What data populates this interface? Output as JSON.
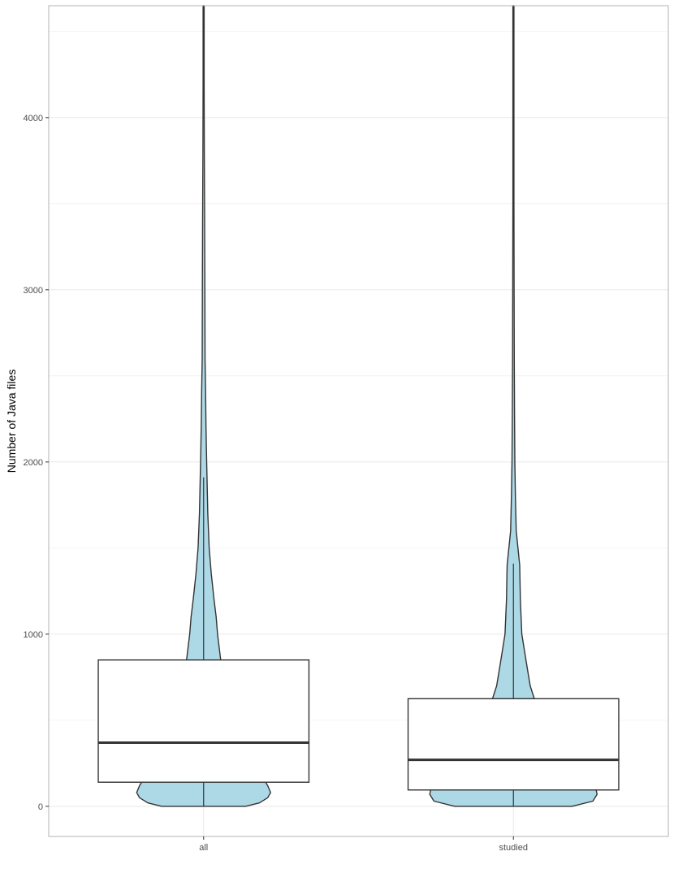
{
  "chart_data": {
    "type": "violin",
    "title": "",
    "xlabel": "",
    "ylabel": "Number of Java files",
    "categories": [
      "all",
      "studied"
    ],
    "ylim": [
      -175,
      4650
    ],
    "yticks": [
      0,
      1000,
      2000,
      3000,
      4000
    ],
    "ytick_labels": [
      "0",
      "1000",
      "2000",
      "3000",
      "4000"
    ],
    "grid": true,
    "legend": "none",
    "colors": {
      "violin_fill": "#add8e6",
      "outline": "#333333",
      "box_fill": "#ffffff",
      "grid": "#ebebeb",
      "panel_border": "#b3b3b3"
    },
    "series": [
      {
        "category": "all",
        "box": {
          "q1": 140,
          "median": 370,
          "q3": 850,
          "whisker_low": 0,
          "whisker_high": 1910
        },
        "violin_halfwidth": [
          [
            0,
            0.3
          ],
          [
            20,
            0.4
          ],
          [
            50,
            0.46
          ],
          [
            80,
            0.48
          ],
          [
            120,
            0.46
          ],
          [
            200,
            0.4
          ],
          [
            300,
            0.34
          ],
          [
            450,
            0.27
          ],
          [
            600,
            0.2
          ],
          [
            800,
            0.13
          ],
          [
            1000,
            0.1
          ],
          [
            1100,
            0.09
          ],
          [
            1200,
            0.075
          ],
          [
            1350,
            0.055
          ],
          [
            1500,
            0.04
          ],
          [
            1700,
            0.03
          ],
          [
            2000,
            0.022
          ],
          [
            2200,
            0.017
          ],
          [
            2400,
            0.014
          ],
          [
            2600,
            0.01
          ],
          [
            3000,
            0.009
          ],
          [
            3400,
            0.007
          ],
          [
            3800,
            0.005
          ],
          [
            4200,
            0.004
          ],
          [
            4650,
            0.004
          ]
        ]
      },
      {
        "category": "studied",
        "box": {
          "q1": 95,
          "median": 270,
          "q3": 625,
          "whisker_low": 0,
          "whisker_high": 1410
        },
        "violin_halfwidth": [
          [
            0,
            0.42
          ],
          [
            30,
            0.57
          ],
          [
            70,
            0.6
          ],
          [
            110,
            0.59
          ],
          [
            160,
            0.52
          ],
          [
            200,
            0.42
          ],
          [
            250,
            0.33
          ],
          [
            300,
            0.27
          ],
          [
            400,
            0.23
          ],
          [
            500,
            0.19
          ],
          [
            625,
            0.15
          ],
          [
            700,
            0.12
          ],
          [
            800,
            0.1
          ],
          [
            900,
            0.08
          ],
          [
            1000,
            0.06
          ],
          [
            1100,
            0.055
          ],
          [
            1200,
            0.05
          ],
          [
            1400,
            0.045
          ],
          [
            1600,
            0.02
          ],
          [
            1800,
            0.014
          ],
          [
            2000,
            0.01
          ],
          [
            2300,
            0.008
          ],
          [
            2600,
            0.006
          ],
          [
            3000,
            0.005
          ],
          [
            3500,
            0.004
          ],
          [
            4650,
            0.004
          ]
        ]
      }
    ]
  }
}
